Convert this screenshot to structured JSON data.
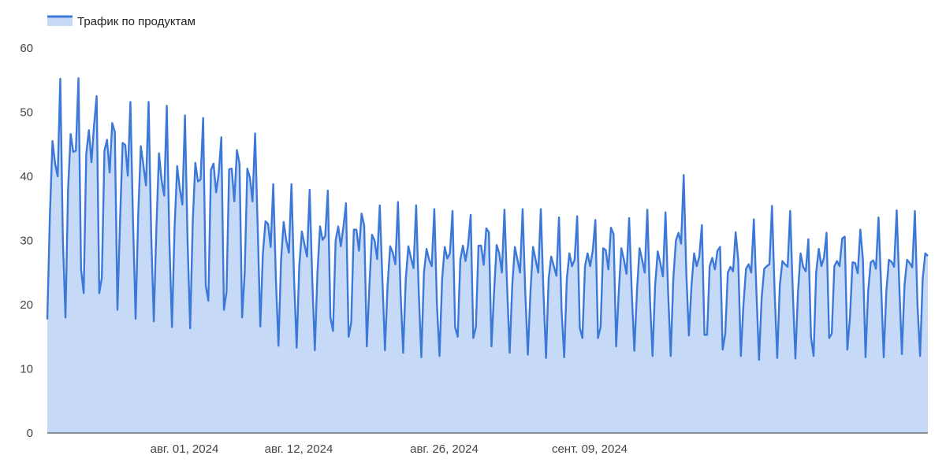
{
  "chart_data": {
    "type": "area",
    "title": "",
    "xlabel": "",
    "ylabel": "",
    "legend": {
      "position": "top-left",
      "entries": [
        "Трафик по продуктам"
      ]
    },
    "grid": false,
    "ylim": [
      0,
      60
    ],
    "yticks": [
      "0",
      "10",
      "20",
      "30",
      "40",
      "50",
      "60"
    ],
    "xticks": [
      "авг. 01, 2024",
      "авг. 12, 2024",
      "авг. 26, 2024",
      "сент. 09, 2024"
    ],
    "colors": {
      "line": "#3c78d8",
      "fill": "#c6daf8",
      "axis": "#333333"
    },
    "series": [
      {
        "name": "Трафик по продуктам",
        "values": [
          17.7,
          34.0,
          45.5,
          42.0,
          40.0,
          55.2,
          30.0,
          18.0,
          38.0,
          46.6,
          43.8,
          44.0,
          55.3,
          25.5,
          21.8,
          43.5,
          47.2,
          42.2,
          48.0,
          52.5,
          21.8,
          24.2,
          44.0,
          45.7,
          40.6,
          48.3,
          46.9,
          19.2,
          33.0,
          45.2,
          44.9,
          40.1,
          51.6,
          33.0,
          17.8,
          34.0,
          44.7,
          41.7,
          38.6,
          51.6,
          31.0,
          17.4,
          32.0,
          43.6,
          39.4,
          37.0,
          51.0,
          30.0,
          16.5,
          32.0,
          41.6,
          38.1,
          35.6,
          49.5,
          30.0,
          16.3,
          33.0,
          42.1,
          39.2,
          39.5,
          49.1,
          23.0,
          20.6,
          41.0,
          42.0,
          37.5,
          40.5,
          46.1,
          19.2,
          22.0,
          41.1,
          41.2,
          36.1,
          44.1,
          42.0,
          18.0,
          25.0,
          41.2,
          39.8,
          36.1,
          46.7,
          32.0,
          16.6,
          28.0,
          33.0,
          32.6,
          29.0,
          38.8,
          24.0,
          13.6,
          27.0,
          32.9,
          30.0,
          28.1,
          38.8,
          24.0,
          13.3,
          26.0,
          31.4,
          29.4,
          27.5,
          37.9,
          24.0,
          12.9,
          25.0,
          32.2,
          30.1,
          30.7,
          37.8,
          18.0,
          15.9,
          30.0,
          32.2,
          29.1,
          32.1,
          35.8,
          15.0,
          17.2,
          31.7,
          31.7,
          28.4,
          34.2,
          32.3,
          13.5,
          23.0,
          30.9,
          30.0,
          27.1,
          35.5,
          24.0,
          12.9,
          23.0,
          29.1,
          28.1,
          26.3,
          36.0,
          22.0,
          12.5,
          24.0,
          29.1,
          27.3,
          25.7,
          35.5,
          22.0,
          11.8,
          25.0,
          28.7,
          27.0,
          26.0,
          34.9,
          20.0,
          12.0,
          24.0,
          29.0,
          27.2,
          28.0,
          34.6,
          16.5,
          15.0,
          27.0,
          29.2,
          26.8,
          29.3,
          34.0,
          14.8,
          16.5,
          29.2,
          29.2,
          26.2,
          31.9,
          31.3,
          13.5,
          22.0,
          29.3,
          28.0,
          25.0,
          34.8,
          23.0,
          12.5,
          23.0,
          29.0,
          27.0,
          25.0,
          34.9,
          22.0,
          12.2,
          22.0,
          29.0,
          27.0,
          25.0,
          34.9,
          22.0,
          11.7,
          24.0,
          27.5,
          26.0,
          24.5,
          33.6,
          19.0,
          11.8,
          24.0,
          28.0,
          26.0,
          27.0,
          33.8,
          16.4,
          14.8,
          26.0,
          28.0,
          26.0,
          28.5,
          33.2,
          14.8,
          16.5,
          28.8,
          28.5,
          25.5,
          32.0,
          31.0,
          13.5,
          22.0,
          28.8,
          27.0,
          24.8,
          33.5,
          22.0,
          12.8,
          22.0,
          28.8,
          27.0,
          25.0,
          34.8,
          21.0,
          12.0,
          23.0,
          28.3,
          26.5,
          24.4,
          34.4,
          22.0,
          12.0,
          24.0,
          30.0,
          31.2,
          29.5,
          40.2,
          25.0,
          15.2,
          23.0,
          28.0,
          26.0,
          27.5,
          32.4,
          15.3,
          15.3,
          26.0,
          27.3,
          25.5,
          28.4,
          29.0,
          13.0,
          15.5,
          25.0,
          25.9,
          25.2,
          31.3,
          27.0,
          12.0,
          20.0,
          25.6,
          26.3,
          25.0,
          33.3,
          22.0,
          11.4,
          21.0,
          25.6,
          26.0,
          26.3,
          35.4,
          22.0,
          11.7,
          23.0,
          26.8,
          26.3,
          25.9,
          34.6,
          22.0,
          11.6,
          22.0,
          28.0,
          25.9,
          25.2,
          30.2,
          15.0,
          12.0,
          25.0,
          28.7,
          26.0,
          27.3,
          31.2,
          14.8,
          15.5,
          26.0,
          26.8,
          26.0,
          30.3,
          30.6,
          13.0,
          18.0,
          26.6,
          26.5,
          24.9,
          31.7,
          27.0,
          11.8,
          22.0,
          26.6,
          26.9,
          25.6,
          33.6,
          23.0,
          11.8,
          22.0,
          27.0,
          26.7,
          25.9,
          34.7,
          23.0,
          12.3,
          23.0,
          27.0,
          26.5,
          25.8,
          34.6,
          20.0,
          12.0,
          24.0,
          28.0,
          27.6
        ]
      }
    ]
  }
}
